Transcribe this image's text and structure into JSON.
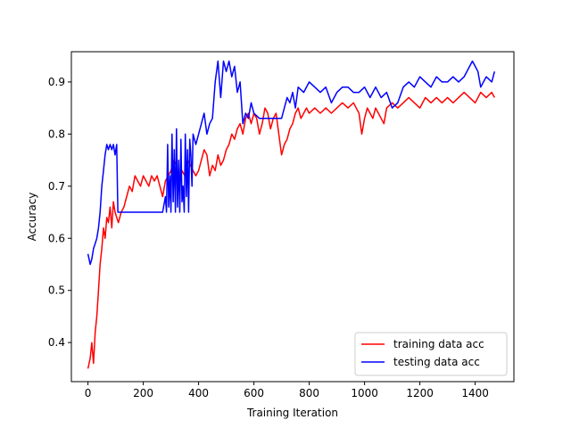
{
  "chart_data": {
    "type": "line",
    "title": "",
    "xlabel": "Training Iteration",
    "ylabel": "Accuracy",
    "xlim": [
      -60,
      1540
    ],
    "ylim": [
      0.325,
      0.958
    ],
    "xticks": [
      0,
      200,
      400,
      600,
      800,
      1000,
      1200,
      1400
    ],
    "yticks": [
      0.4,
      0.5,
      0.6,
      0.7,
      0.8,
      0.9
    ],
    "grid": false,
    "legend_position": "lower-right",
    "series": [
      {
        "name": "training data acc",
        "color": "#ff0000",
        "x": [
          0,
          8,
          14,
          20,
          26,
          32,
          38,
          44,
          50,
          56,
          62,
          68,
          74,
          80,
          86,
          92,
          98,
          104,
          110,
          120,
          130,
          140,
          150,
          160,
          170,
          180,
          190,
          200,
          210,
          220,
          230,
          240,
          250,
          260,
          270,
          280,
          290,
          300,
          310,
          320,
          330,
          340,
          350,
          360,
          370,
          380,
          390,
          400,
          410,
          420,
          430,
          440,
          450,
          460,
          470,
          480,
          490,
          500,
          510,
          520,
          530,
          540,
          550,
          560,
          570,
          580,
          590,
          600,
          610,
          620,
          630,
          640,
          650,
          660,
          670,
          680,
          690,
          700,
          710,
          720,
          730,
          740,
          750,
          760,
          770,
          780,
          790,
          800,
          820,
          840,
          860,
          880,
          900,
          920,
          940,
          960,
          980,
          990,
          1000,
          1010,
          1020,
          1030,
          1040,
          1050,
          1060,
          1070,
          1080,
          1100,
          1120,
          1140,
          1160,
          1180,
          1200,
          1220,
          1240,
          1260,
          1280,
          1300,
          1320,
          1340,
          1360,
          1380,
          1400,
          1420,
          1440,
          1460,
          1470
        ],
        "values": [
          0.35,
          0.37,
          0.4,
          0.36,
          0.42,
          0.45,
          0.5,
          0.55,
          0.58,
          0.62,
          0.6,
          0.64,
          0.63,
          0.66,
          0.62,
          0.67,
          0.65,
          0.64,
          0.63,
          0.65,
          0.66,
          0.68,
          0.7,
          0.69,
          0.72,
          0.71,
          0.7,
          0.72,
          0.71,
          0.7,
          0.72,
          0.71,
          0.72,
          0.7,
          0.68,
          0.71,
          0.72,
          0.73,
          0.75,
          0.74,
          0.7,
          0.73,
          0.72,
          0.75,
          0.74,
          0.73,
          0.72,
          0.73,
          0.75,
          0.77,
          0.76,
          0.72,
          0.74,
          0.73,
          0.76,
          0.74,
          0.75,
          0.77,
          0.78,
          0.8,
          0.79,
          0.81,
          0.82,
          0.8,
          0.83,
          0.84,
          0.82,
          0.84,
          0.83,
          0.8,
          0.82,
          0.85,
          0.84,
          0.81,
          0.83,
          0.84,
          0.8,
          0.76,
          0.78,
          0.79,
          0.81,
          0.82,
          0.84,
          0.85,
          0.83,
          0.84,
          0.85,
          0.84,
          0.85,
          0.84,
          0.85,
          0.84,
          0.85,
          0.86,
          0.85,
          0.86,
          0.84,
          0.8,
          0.83,
          0.85,
          0.84,
          0.83,
          0.85,
          0.84,
          0.83,
          0.82,
          0.85,
          0.86,
          0.85,
          0.86,
          0.87,
          0.86,
          0.85,
          0.87,
          0.86,
          0.87,
          0.86,
          0.87,
          0.86,
          0.87,
          0.88,
          0.87,
          0.86,
          0.88,
          0.87,
          0.88,
          0.87
        ]
      },
      {
        "name": "testing data acc",
        "color": "#0000ff",
        "x": [
          0,
          8,
          14,
          20,
          26,
          32,
          38,
          44,
          50,
          56,
          62,
          68,
          74,
          80,
          86,
          92,
          98,
          104,
          108,
          116,
          140,
          200,
          270,
          280,
          284,
          288,
          292,
          296,
          300,
          304,
          308,
          312,
          316,
          320,
          324,
          328,
          332,
          336,
          340,
          344,
          348,
          352,
          356,
          360,
          364,
          368,
          372,
          376,
          380,
          390,
          400,
          410,
          420,
          430,
          440,
          450,
          460,
          470,
          480,
          490,
          500,
          510,
          520,
          530,
          540,
          550,
          560,
          570,
          580,
          590,
          600,
          620,
          640,
          660,
          680,
          700,
          710,
          720,
          730,
          740,
          750,
          760,
          780,
          800,
          820,
          840,
          860,
          880,
          900,
          920,
          940,
          960,
          980,
          1000,
          1020,
          1040,
          1060,
          1080,
          1100,
          1120,
          1140,
          1160,
          1180,
          1200,
          1220,
          1240,
          1260,
          1280,
          1300,
          1320,
          1340,
          1360,
          1380,
          1390,
          1400,
          1410,
          1420,
          1440,
          1460,
          1470
        ],
        "values": [
          0.57,
          0.55,
          0.56,
          0.58,
          0.59,
          0.6,
          0.62,
          0.65,
          0.7,
          0.73,
          0.76,
          0.78,
          0.77,
          0.78,
          0.77,
          0.78,
          0.76,
          0.78,
          0.65,
          0.65,
          0.65,
          0.65,
          0.65,
          0.68,
          0.65,
          0.78,
          0.66,
          0.72,
          0.65,
          0.8,
          0.67,
          0.77,
          0.65,
          0.81,
          0.66,
          0.75,
          0.65,
          0.79,
          0.67,
          0.7,
          0.65,
          0.8,
          0.68,
          0.77,
          0.65,
          0.79,
          0.76,
          0.7,
          0.8,
          0.78,
          0.8,
          0.82,
          0.84,
          0.8,
          0.82,
          0.83,
          0.9,
          0.94,
          0.87,
          0.94,
          0.92,
          0.94,
          0.91,
          0.93,
          0.88,
          0.9,
          0.82,
          0.84,
          0.83,
          0.86,
          0.84,
          0.83,
          0.83,
          0.83,
          0.83,
          0.83,
          0.85,
          0.87,
          0.86,
          0.88,
          0.85,
          0.89,
          0.88,
          0.9,
          0.89,
          0.88,
          0.89,
          0.86,
          0.88,
          0.89,
          0.89,
          0.88,
          0.88,
          0.89,
          0.87,
          0.89,
          0.87,
          0.88,
          0.85,
          0.86,
          0.89,
          0.9,
          0.89,
          0.91,
          0.9,
          0.89,
          0.91,
          0.9,
          0.9,
          0.91,
          0.9,
          0.91,
          0.93,
          0.94,
          0.93,
          0.92,
          0.89,
          0.91,
          0.9,
          0.92
        ]
      }
    ]
  }
}
